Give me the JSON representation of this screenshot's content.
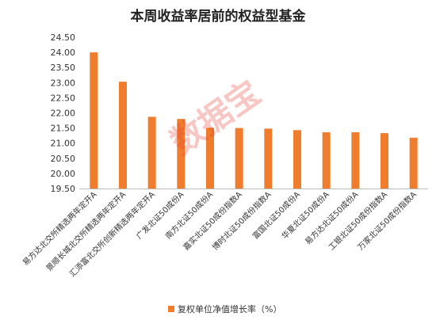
{
  "chart_data": {
    "type": "bar",
    "title": "本周收益率居前的权益型基金",
    "categories": [
      "易方达北交所精选两年定开A",
      "景顺长城北交所精选两年定开A",
      "汇添富北交所创新精选两年定开A",
      "广发北证50成份A",
      "南方北证50成份A",
      "嘉实北证50成份指数A",
      "博时北证50成份指数A",
      "富国北证50成份A",
      "华夏北证50成份A",
      "易方达北证50成份A",
      "工银北证50成份指数A",
      "万家北证50成份指数A"
    ],
    "series": [
      {
        "name": "复权单位净值增长率（%）",
        "values": [
          24.0,
          23.03,
          21.87,
          21.8,
          21.51,
          21.5,
          21.48,
          21.43,
          21.36,
          21.36,
          21.33,
          21.18
        ]
      }
    ],
    "yticks": [
      "19.50",
      "20.00",
      "20.50",
      "21.00",
      "21.50",
      "22.00",
      "22.50",
      "23.00",
      "23.50",
      "24.00",
      "24.50"
    ],
    "ylim": [
      19.5,
      24.5
    ],
    "xlabel": "",
    "ylabel": "",
    "grid": false,
    "legend_position": "bottom",
    "bar_color": "#f07c2e",
    "watermark": "数据宝"
  }
}
